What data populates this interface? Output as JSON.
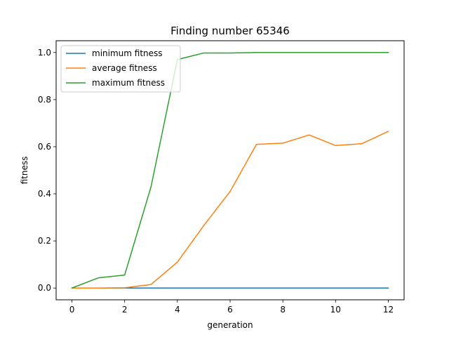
{
  "chart_data": {
    "type": "line",
    "title": "Finding number 65346",
    "xlabel": "generation",
    "ylabel": "fitness",
    "xlim": [
      -0.6,
      12.6
    ],
    "ylim": [
      -0.05,
      1.05
    ],
    "xticks": [
      0,
      2,
      4,
      6,
      8,
      10,
      12
    ],
    "yticks": [
      0.0,
      0.2,
      0.4,
      0.6,
      0.8,
      1.0
    ],
    "xtick_labels": [
      "0",
      "2",
      "4",
      "6",
      "8",
      "10",
      "12"
    ],
    "ytick_labels": [
      "0.0",
      "0.2",
      "0.4",
      "0.6",
      "0.8",
      "1.0"
    ],
    "grid": false,
    "legend_position": "upper-left",
    "x": [
      0,
      1,
      2,
      3,
      4,
      5,
      6,
      7,
      8,
      9,
      10,
      11,
      12
    ],
    "series": [
      {
        "name": "minimum fitness",
        "color": "#1f77b4",
        "values": [
          0,
          0,
          0,
          0,
          0,
          0,
          0,
          0,
          0,
          0,
          0,
          0,
          0
        ]
      },
      {
        "name": "average fitness",
        "color": "#ff7f0e",
        "values": [
          0.0,
          0.0,
          0.001,
          0.015,
          0.11,
          0.265,
          0.41,
          0.61,
          0.615,
          0.65,
          0.605,
          0.613,
          0.665
        ]
      },
      {
        "name": "maximum fitness",
        "color": "#2ca02c",
        "values": [
          0.0,
          0.043,
          0.055,
          0.43,
          0.97,
          0.998,
          0.998,
          1.0,
          1.0,
          1.0,
          1.0,
          1.0,
          1.0
        ]
      }
    ]
  }
}
